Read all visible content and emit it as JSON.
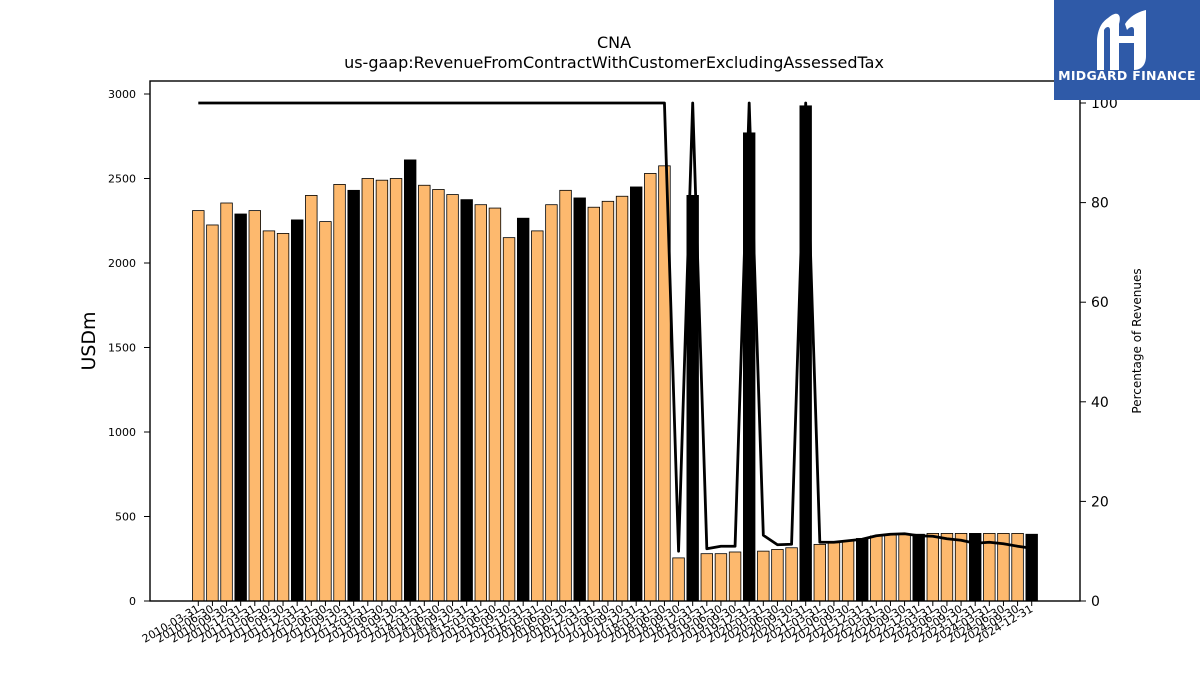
{
  "brand": {
    "name": "MIDGARD FINANCE",
    "bg_color": "#2f5aa8"
  },
  "chart_data": {
    "type": "bar",
    "title": "CNA",
    "subtitle": "us-gaap:RevenueFromContractWithCustomerExcludingAssessedTax",
    "ylabel": "USDm",
    "y2label": "Percentage of Revenues",
    "ylim": [
      0,
      3000
    ],
    "y2lim": [
      0,
      100
    ],
    "yticks": [
      0,
      500,
      1000,
      1500,
      2000,
      2500,
      3000
    ],
    "y2ticks": [
      0,
      20,
      40,
      60,
      80,
      100
    ],
    "grid": false,
    "colors": {
      "quarter_bar": "#fdb96e",
      "annual_bar": "#000000",
      "line": "#000000"
    },
    "categories": [
      "2010-03-31",
      "2010-06-30",
      "2010-09-30",
      "2010-12-31",
      "2011-03-31",
      "2011-06-30",
      "2011-09-30",
      "2011-12-31",
      "2012-03-31",
      "2012-06-30",
      "2012-09-30",
      "2012-12-31",
      "2013-03-31",
      "2013-06-30",
      "2013-09-30",
      "2013-12-31",
      "2014-03-31",
      "2014-06-30",
      "2014-09-30",
      "2014-12-31",
      "2015-03-31",
      "2015-06-30",
      "2015-09-30",
      "2015-12-31",
      "2016-03-31",
      "2016-06-30",
      "2016-09-30",
      "2016-12-31",
      "2017-03-31",
      "2017-06-30",
      "2017-09-30",
      "2017-12-31",
      "2018-03-31",
      "2018-06-30",
      "2018-09-30",
      "2018-12-31",
      "2019-03-31",
      "2019-06-30",
      "2019-09-30",
      "2019-12-31",
      "2020-03-31",
      "2020-06-30",
      "2020-09-30",
      "2020-12-31",
      "2021-03-31",
      "2021-06-30",
      "2021-09-30",
      "2021-12-31",
      "2022-03-31",
      "2022-06-30",
      "2022-09-30",
      "2022-12-31",
      "2023-03-31",
      "2023-06-30",
      "2023-09-30",
      "2023-12-31",
      "2024-03-31",
      "2024-06-30",
      "2024-09-30",
      "2024-12-31"
    ],
    "values": [
      2310,
      2225,
      2355,
      2290,
      2310,
      2190,
      2175,
      2255,
      2400,
      2245,
      2465,
      2430,
      2500,
      2490,
      2500,
      2610,
      2460,
      2435,
      2405,
      2375,
      2345,
      2325,
      2150,
      2265,
      2190,
      2345,
      2430,
      2385,
      2330,
      2365,
      2395,
      2450,
      2530,
      2575,
      255,
      2400,
      280,
      280,
      290,
      2770,
      295,
      305,
      315,
      2930,
      335,
      345,
      355,
      370,
      385,
      390,
      395,
      395,
      400,
      400,
      400,
      400,
      400,
      400,
      400,
      395
    ],
    "bar_kind": [
      "q",
      "q",
      "q",
      "a",
      "q",
      "q",
      "q",
      "a",
      "q",
      "q",
      "q",
      "a",
      "q",
      "q",
      "q",
      "a",
      "q",
      "q",
      "q",
      "a",
      "q",
      "q",
      "q",
      "a",
      "q",
      "q",
      "q",
      "a",
      "q",
      "q",
      "q",
      "a",
      "q",
      "q",
      "q",
      "a",
      "q",
      "q",
      "q",
      "a",
      "q",
      "q",
      "q",
      "a",
      "q",
      "q",
      "q",
      "a",
      "q",
      "q",
      "q",
      "a",
      "q",
      "q",
      "q",
      "a",
      "q",
      "q",
      "q",
      "a"
    ],
    "percentage_line": [
      100,
      100,
      100,
      100,
      100,
      100,
      100,
      100,
      100,
      100,
      100,
      100,
      100,
      100,
      100,
      100,
      100,
      100,
      100,
      100,
      100,
      100,
      100,
      100,
      100,
      100,
      100,
      100,
      100,
      100,
      100,
      100,
      100,
      100,
      10,
      100,
      10.5,
      11,
      11,
      100,
      13.2,
      11.3,
      11.4,
      100,
      11.8,
      11.8,
      12.1,
      12.4,
      13.1,
      13.4,
      13.5,
      13.1,
      13,
      12.5,
      12.2,
      11.6,
      11.8,
      11.5,
      11,
      10.6
    ]
  }
}
